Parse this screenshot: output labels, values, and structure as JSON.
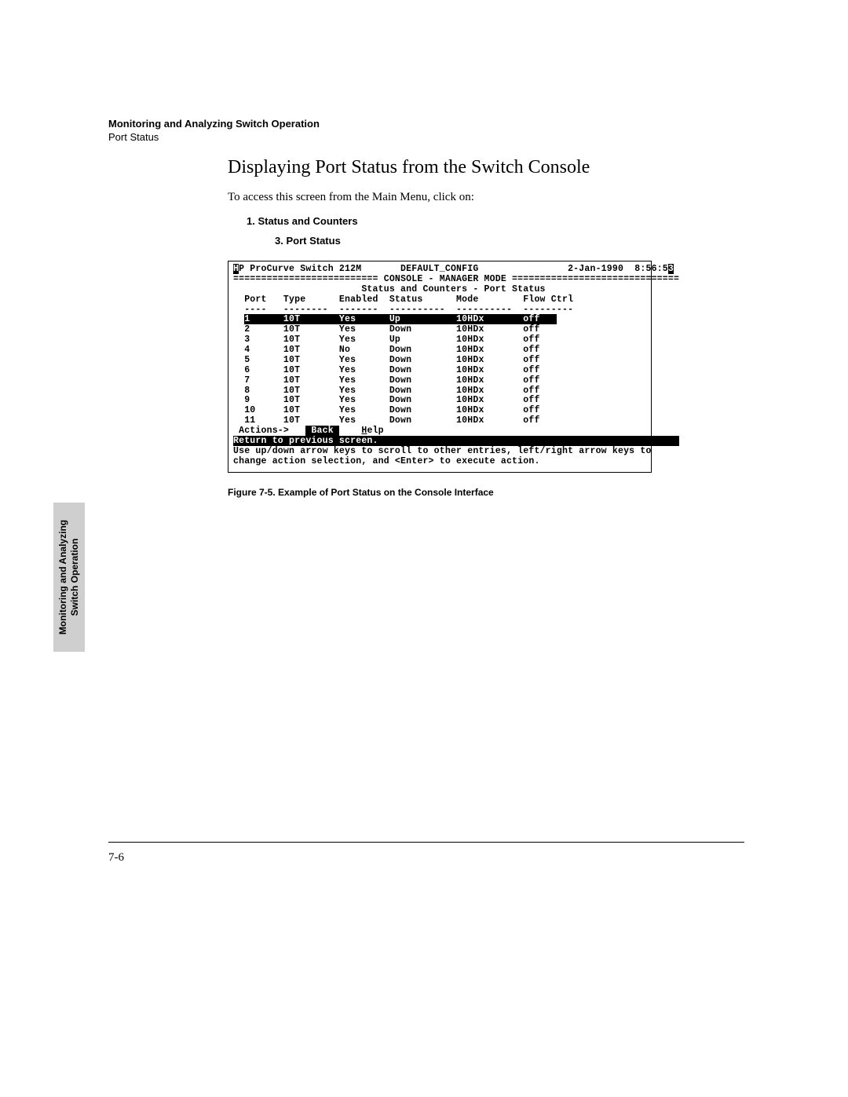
{
  "header": {
    "line1": "Monitoring and Analyzing Switch Operation",
    "line2": "Port Status"
  },
  "title": "Displaying Port Status from the Switch Console",
  "intro": "To access this screen from the Main Menu, click on:",
  "steps": {
    "s1": "1. Status and Counters",
    "s2": "3. Port Status"
  },
  "console": {
    "topbar": {
      "left": "HP ProCurve Switch 212M",
      "center": "DEFAULT_CONFIG",
      "date": "2-Jan-1990",
      "time": "8:56:53"
    },
    "mode_line": "========================== CONSOLE - MANAGER MODE ==============================",
    "subtitle": "Status and Counters - Port Status",
    "columns": [
      "Port",
      "Type",
      "Enabled",
      "Status",
      "Mode",
      "Flow Ctrl"
    ],
    "rows": [
      {
        "port": "1",
        "type": "10T",
        "enabled": "Yes",
        "status": "Up",
        "mode": "10HDx",
        "flow": "off",
        "selected": true
      },
      {
        "port": "2",
        "type": "10T",
        "enabled": "Yes",
        "status": "Down",
        "mode": "10HDx",
        "flow": "off",
        "selected": false
      },
      {
        "port": "3",
        "type": "10T",
        "enabled": "Yes",
        "status": "Up",
        "mode": "10HDx",
        "flow": "off",
        "selected": false
      },
      {
        "port": "4",
        "type": "10T",
        "enabled": "No",
        "status": "Down",
        "mode": "10HDx",
        "flow": "off",
        "selected": false
      },
      {
        "port": "5",
        "type": "10T",
        "enabled": "Yes",
        "status": "Down",
        "mode": "10HDx",
        "flow": "off",
        "selected": false
      },
      {
        "port": "6",
        "type": "10T",
        "enabled": "Yes",
        "status": "Down",
        "mode": "10HDx",
        "flow": "off",
        "selected": false
      },
      {
        "port": "7",
        "type": "10T",
        "enabled": "Yes",
        "status": "Down",
        "mode": "10HDx",
        "flow": "off",
        "selected": false
      },
      {
        "port": "8",
        "type": "10T",
        "enabled": "Yes",
        "status": "Down",
        "mode": "10HDx",
        "flow": "off",
        "selected": false
      },
      {
        "port": "9",
        "type": "10T",
        "enabled": "Yes",
        "status": "Down",
        "mode": "10HDx",
        "flow": "off",
        "selected": false
      },
      {
        "port": "10",
        "type": "10T",
        "enabled": "Yes",
        "status": "Down",
        "mode": "10HDx",
        "flow": "off",
        "selected": false
      },
      {
        "port": "11",
        "type": "10T",
        "enabled": "Yes",
        "status": "Down",
        "mode": "10HDx",
        "flow": "off",
        "selected": false
      }
    ],
    "col_widths": {
      "port": 4,
      "type": 8,
      "enabled": 7,
      "status": 10,
      "mode": 10,
      "flow": 9
    },
    "actions_label": "Actions->",
    "actions": [
      "Back",
      "Help"
    ],
    "status_line": "Return to previous screen.",
    "help1": "Use up/down arrow keys to scroll to other entries, left/right arrow keys to",
    "help2": "change action selection, and <Enter> to execute action."
  },
  "figure_caption": "Figure 7-5.   Example of Port Status on the Console Interface",
  "side_tab": {
    "line1": "Monitoring and Analyzing",
    "line2": "Switch Operation"
  },
  "page_number": "7-6",
  "colors": {
    "page_bg": "#ffffff",
    "text": "#000000",
    "tab_bg": "#cfcfcf",
    "inverse_bg": "#000000",
    "inverse_fg": "#ffffff"
  }
}
